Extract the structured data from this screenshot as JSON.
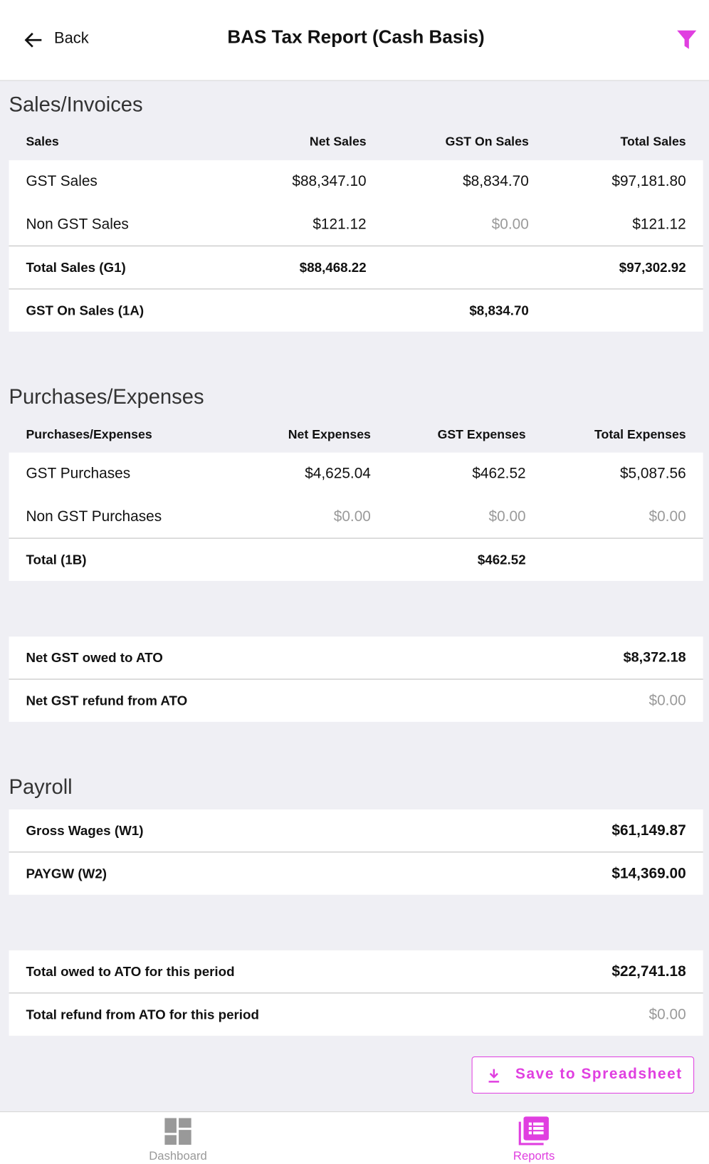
{
  "header": {
    "back": "Back",
    "title": "BAS Tax Report (Cash Basis)"
  },
  "sales": {
    "title": "Sales/Invoices",
    "columns": [
      "Sales",
      "Net Sales",
      "GST On Sales",
      "Total Sales"
    ],
    "rows": [
      [
        "GST Sales",
        "$88,347.10",
        "$8,834.70",
        "$97,181.80"
      ],
      [
        "Non GST Sales",
        "$121.12",
        "$0.00",
        "$121.12"
      ],
      [
        "Total Sales (G1)",
        "$88,468.22",
        null,
        "$97,302.92"
      ],
      [
        "GST On Sales (1A)",
        null,
        "$8,834.70",
        null
      ]
    ]
  },
  "purchases": {
    "title": "Purchases/Expenses",
    "columns": [
      "Purchases/Expenses",
      "Net Expenses",
      "GST Expenses",
      "Total Expenses"
    ],
    "rows": [
      [
        "GST Purchases",
        "$4,625.04",
        "$462.52",
        "$5,087.56"
      ],
      [
        "Non GST Purchases",
        "$0.00",
        "$0.00",
        "$0.00"
      ],
      [
        "Total (1B)",
        null,
        "$462.52",
        null
      ]
    ]
  },
  "net_gst": {
    "rows": [
      [
        "Net GST owed to ATO",
        "$8,372.18"
      ],
      [
        "Net GST refund from ATO",
        "$0.00"
      ]
    ]
  },
  "payroll": {
    "title": "Payroll",
    "rows": [
      [
        "Gross Wages (W1)",
        "$61,149.87"
      ],
      [
        "PAYGW (W2)",
        "$14,369.00"
      ]
    ]
  },
  "totals": {
    "rows": [
      [
        "Total owed to ATO for this period",
        "$22,741.18"
      ],
      [
        "Total refund from ATO for this period",
        "$0.00"
      ]
    ]
  },
  "button": "Save to Spreadsheet",
  "tabs": [
    "Dashboard",
    "Reports"
  ]
}
